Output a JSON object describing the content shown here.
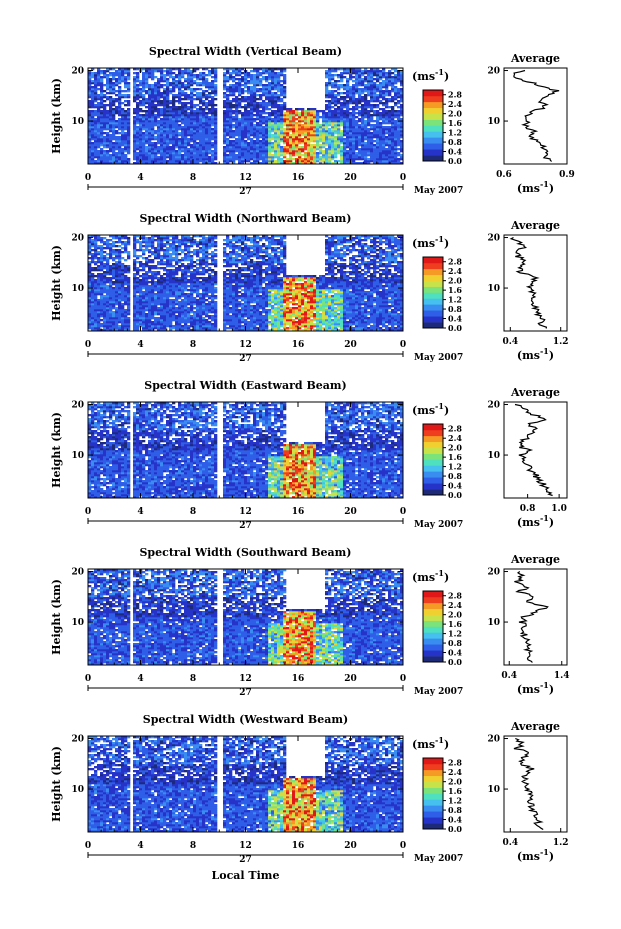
{
  "figure": {
    "xlabel": "Local Time",
    "date_label": "May 2007",
    "day_label": "27",
    "ylabel": "Height (km)",
    "cbar_unit": "(ms",
    "cbar_unit_sup": "-1",
    "cbar_unit_close": ")",
    "avg_title": "Average",
    "avg_unit": "(ms",
    "avg_unit_sup": "-1",
    "avg_unit_close": ")"
  },
  "colors": {
    "scale": [
      "#1d2a7a",
      "#2633c8",
      "#2f5fe8",
      "#3a8df0",
      "#45c0ef",
      "#4fe0c0",
      "#7be37a",
      "#c8e24a",
      "#f0d030",
      "#f59a25",
      "#ef3d1f",
      "#e01818"
    ]
  },
  "chart_data": [
    {
      "type": "heatmap",
      "title": "Spectral Width (Vertical Beam)",
      "x_ticks": [
        "0",
        "4",
        "8",
        "12",
        "16",
        "20",
        "0"
      ],
      "x_range": [
        0,
        24
      ],
      "y_ticks": [
        "10",
        "20"
      ],
      "y_range": [
        1.5,
        20.5
      ],
      "gaps_hours": [
        [
          3.3,
          3.5
        ],
        [
          9.9,
          10.3
        ]
      ],
      "cbar_ticks": [
        "0.0",
        "0.4",
        "0.8",
        "1.2",
        "1.6",
        "2.0",
        "2.4",
        "2.8"
      ],
      "cbar_range": [
        0,
        3.0
      ],
      "average": {
        "title": "Average",
        "x_ticks": [
          "0.6",
          "0.9"
        ],
        "x_range": [
          0.6,
          0.9
        ],
        "profile_heights": [
          2,
          3,
          4,
          5,
          6,
          7,
          8,
          9,
          10,
          11,
          12,
          13,
          14,
          15,
          16,
          17,
          18,
          19,
          20
        ],
        "profile_values": [
          0.83,
          0.8,
          0.82,
          0.78,
          0.75,
          0.72,
          0.74,
          0.7,
          0.72,
          0.71,
          0.75,
          0.8,
          0.77,
          0.82,
          0.85,
          0.78,
          0.7,
          0.63,
          0.7
        ]
      }
    },
    {
      "type": "heatmap",
      "title": "Spectral Width (Northward Beam)",
      "x_ticks": [
        "0",
        "4",
        "8",
        "12",
        "16",
        "20",
        "0"
      ],
      "x_range": [
        0,
        24
      ],
      "y_ticks": [
        "10",
        "20"
      ],
      "y_range": [
        1.5,
        20.5
      ],
      "gaps_hours": [
        [
          3.3,
          3.5
        ],
        [
          9.9,
          10.3
        ]
      ],
      "cbar_ticks": [
        "0.0",
        "0.4",
        "0.8",
        "1.2",
        "1.6",
        "2.0",
        "2.4",
        "2.8"
      ],
      "cbar_range": [
        0,
        3.0
      ],
      "average": {
        "title": "Average",
        "x_ticks": [
          "0.4",
          "1.2"
        ],
        "x_range": [
          0.3,
          1.3
        ],
        "profile_heights": [
          2,
          3,
          4,
          5,
          6,
          7,
          8,
          9,
          10,
          11,
          12,
          13,
          14,
          15,
          16,
          17,
          18,
          19,
          20
        ],
        "profile_values": [
          0.95,
          0.88,
          0.9,
          0.85,
          0.8,
          0.78,
          0.76,
          0.74,
          0.72,
          0.76,
          0.8,
          0.58,
          0.52,
          0.62,
          0.55,
          0.48,
          0.6,
          0.52,
          0.45
        ]
      }
    },
    {
      "type": "heatmap",
      "title": "Spectral Width (Eastward Beam)",
      "x_ticks": [
        "0",
        "4",
        "8",
        "12",
        "16",
        "20",
        "0"
      ],
      "x_range": [
        0,
        24
      ],
      "y_ticks": [
        "10",
        "20"
      ],
      "y_range": [
        1.5,
        20.5
      ],
      "gaps_hours": [
        [
          3.3,
          3.5
        ],
        [
          9.9,
          10.3
        ]
      ],
      "cbar_ticks": [
        "0.0",
        "0.4",
        "0.8",
        "1.2",
        "1.6",
        "2.0",
        "2.4",
        "2.8"
      ],
      "cbar_range": [
        0,
        3.0
      ],
      "average": {
        "title": "Average",
        "x_ticks": [
          "0.8",
          "1.0"
        ],
        "x_range": [
          0.65,
          1.05
        ],
        "profile_heights": [
          2,
          3,
          4,
          5,
          6,
          7,
          8,
          9,
          10,
          11,
          12,
          13,
          14,
          15,
          16,
          17,
          18,
          19,
          20
        ],
        "profile_values": [
          0.95,
          0.93,
          0.9,
          0.88,
          0.85,
          0.82,
          0.8,
          0.78,
          0.76,
          0.8,
          0.74,
          0.78,
          0.82,
          0.86,
          0.8,
          0.9,
          0.84,
          0.78,
          0.72
        ]
      }
    },
    {
      "type": "heatmap",
      "title": "Spectral Width (Southward Beam)",
      "x_ticks": [
        "0",
        "4",
        "8",
        "12",
        "16",
        "20",
        "0"
      ],
      "x_range": [
        0,
        24
      ],
      "y_ticks": [
        "10",
        "20"
      ],
      "y_range": [
        1.5,
        20.5
      ],
      "gaps_hours": [
        [
          3.3,
          3.5
        ],
        [
          9.9,
          10.3
        ]
      ],
      "cbar_ticks": [
        "0.0",
        "0.4",
        "0.8",
        "1.2",
        "1.6",
        "2.0",
        "2.4",
        "2.8"
      ],
      "cbar_range": [
        0,
        3.0
      ],
      "average": {
        "title": "Average",
        "x_ticks": [
          "0.4",
          "1.4"
        ],
        "x_range": [
          0.3,
          1.5
        ],
        "profile_heights": [
          2,
          3,
          4,
          5,
          6,
          7,
          8,
          9,
          10,
          11,
          12,
          13,
          14,
          15,
          16,
          17,
          18,
          19,
          20
        ],
        "profile_values": [
          0.85,
          0.8,
          0.78,
          0.75,
          0.72,
          0.7,
          0.68,
          0.66,
          0.64,
          0.7,
          0.9,
          1.1,
          0.7,
          0.85,
          0.6,
          0.75,
          0.55,
          0.65,
          0.6
        ]
      }
    },
    {
      "type": "heatmap",
      "title": "Spectral Width (Westward Beam)",
      "x_ticks": [
        "0",
        "4",
        "8",
        "12",
        "16",
        "20",
        "0"
      ],
      "x_range": [
        0,
        24
      ],
      "y_ticks": [
        "10",
        "20"
      ],
      "y_range": [
        1.5,
        20.5
      ],
      "gaps_hours": [
        [
          3.3,
          3.5
        ],
        [
          9.9,
          10.3
        ]
      ],
      "cbar_ticks": [
        "0.0",
        "0.4",
        "0.8",
        "1.2",
        "1.6",
        "2.0",
        "2.4",
        "2.8"
      ],
      "cbar_range": [
        0,
        3.0
      ],
      "average": {
        "title": "Average",
        "x_ticks": [
          "0.4",
          "1.2"
        ],
        "x_range": [
          0.3,
          1.3
        ],
        "profile_heights": [
          2,
          3,
          4,
          5,
          6,
          7,
          8,
          9,
          10,
          11,
          12,
          13,
          14,
          15,
          16,
          17,
          18,
          19,
          20
        ],
        "profile_values": [
          0.88,
          0.85,
          0.82,
          0.8,
          0.76,
          0.74,
          0.72,
          0.7,
          0.68,
          0.64,
          0.62,
          0.66,
          0.72,
          0.6,
          0.55,
          0.7,
          0.5,
          0.6,
          0.48
        ]
      }
    }
  ]
}
